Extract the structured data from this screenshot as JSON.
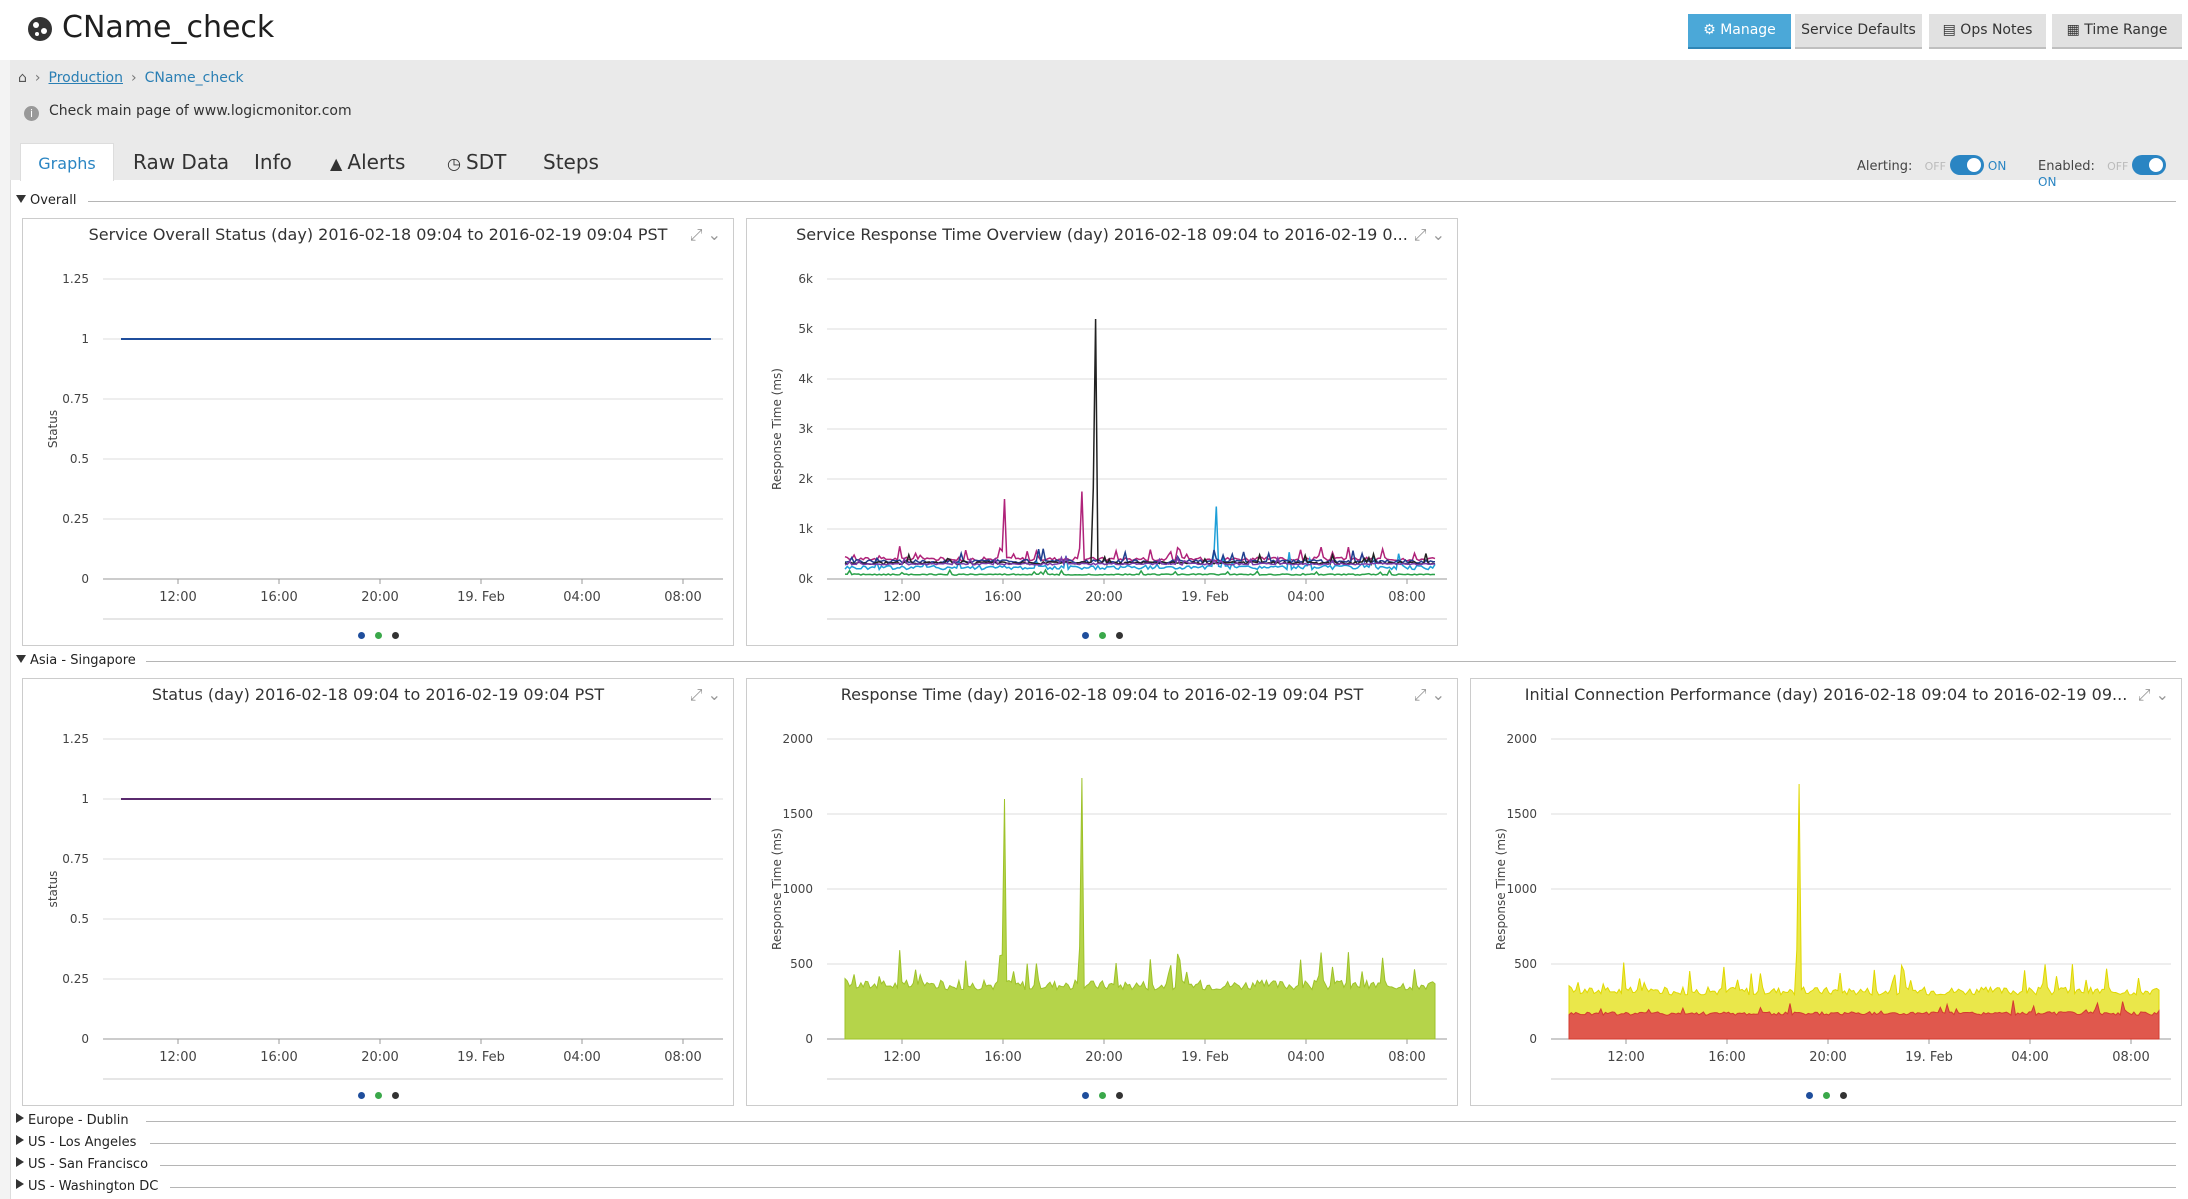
{
  "header": {
    "title": "CName_check",
    "buttons": {
      "manage": "Manage",
      "service_defaults": "Service Defaults",
      "ops_notes": "Ops Notes",
      "time_range": "Time Range"
    }
  },
  "breadcrumb": {
    "parent": "Production",
    "current": "CName_check"
  },
  "description": "Check main page of www.logicmonitor.com",
  "tabs": {
    "graphs": "Graphs",
    "raw_data": "Raw Data",
    "info": "Info",
    "alerts": "Alerts",
    "sdt": "SDT",
    "steps": "Steps"
  },
  "toggles": {
    "alerting_label": "Alerting:",
    "enabled_label": "Enabled:",
    "off": "OFF",
    "on": "ON"
  },
  "sections": {
    "overall": "Overall",
    "asia": "Asia - Singapore",
    "collapsed": [
      "Europe - Dublin",
      "US - Los Angeles",
      "US - San Francisco",
      "US - Washington DC"
    ]
  },
  "colors": {
    "accent": "#2a85c3",
    "manage_button": "#4ba8d8",
    "legend": [
      "#1f4e9c",
      "#3aa84a",
      "#333333"
    ]
  },
  "panel_titles": {
    "overall_status": "Service Overall Status (day) 2016-02-18 09:04 to 2016-02-19 09:04 PST",
    "overall_response": "Service Response Time Overview (day) 2016-02-18 09:04 to 2016-02-19 0...",
    "sg_status": "Status (day) 2016-02-18 09:04 to 2016-02-19 09:04 PST",
    "sg_response": "Response Time (day) 2016-02-18 09:04 to 2016-02-19 09:04 PST",
    "sg_connection": "Initial Connection Performance (day) 2016-02-18 09:04 to 2016-02-19 09..."
  },
  "chart_data": [
    {
      "id": "overall_status",
      "type": "line",
      "ylabel": "Status",
      "yticks": [
        "0",
        "0.25",
        "0.5",
        "0.75",
        "1",
        "1.25"
      ],
      "xticks": [
        "12:00",
        "16:00",
        "20:00",
        "19. Feb",
        "04:00",
        "08:00"
      ],
      "ylim": [
        0,
        1.25
      ],
      "series": [
        {
          "color": "#1f4e9c",
          "constant": 1
        }
      ]
    },
    {
      "id": "overall_response",
      "type": "line",
      "ylabel": "Response Time (ms)",
      "yticks": [
        "0k",
        "1k",
        "2k",
        "3k",
        "4k",
        "5k",
        "6k"
      ],
      "xticks": [
        "12:00",
        "16:00",
        "20:00",
        "19. Feb",
        "04:00",
        "08:00"
      ],
      "ylim": [
        0,
        6000
      ],
      "series": [
        {
          "color": "#b0237a",
          "base": 400,
          "noise": 120,
          "spikes": [
            [
              0.27,
              1600
            ],
            [
              0.4,
              1750
            ]
          ]
        },
        {
          "color": "#1e9fd8",
          "base": 230,
          "noise": 140,
          "spikes": [
            [
              0.63,
              1450
            ]
          ]
        },
        {
          "color": "#1f3f8f",
          "base": 350,
          "noise": 110,
          "spikes": []
        },
        {
          "color": "#222222",
          "base": 320,
          "noise": 90,
          "spikes": [
            [
              0.425,
              5200
            ]
          ]
        },
        {
          "color": "#2aa14a",
          "base": 90,
          "noise": 40,
          "spikes": []
        },
        {
          "color": "#7a3aa8",
          "base": 300,
          "noise": 60,
          "spikes": []
        }
      ]
    },
    {
      "id": "sg_status",
      "type": "line",
      "ylabel": "status",
      "yticks": [
        "0",
        "0.25",
        "0.5",
        "0.75",
        "1",
        "1.25"
      ],
      "xticks": [
        "12:00",
        "16:00",
        "20:00",
        "19. Feb",
        "04:00",
        "08:00"
      ],
      "ylim": [
        0,
        1.25
      ],
      "series": [
        {
          "color": "#5a2a6e",
          "constant": 1
        }
      ]
    },
    {
      "id": "sg_response",
      "type": "area",
      "ylabel": "Response Time (ms)",
      "yticks": [
        "0",
        "500",
        "1000",
        "1500",
        "2000"
      ],
      "xticks": [
        "12:00",
        "16:00",
        "20:00",
        "19. Feb",
        "04:00",
        "08:00"
      ],
      "ylim": [
        0,
        2000
      ],
      "series": [
        {
          "color": "#9ec22a",
          "fill": "#b5d44a",
          "base": 360,
          "noise": 110,
          "spikes": [
            [
              0.27,
              1600
            ],
            [
              0.4,
              1740
            ]
          ]
        }
      ]
    },
    {
      "id": "sg_connection",
      "type": "area",
      "ylabel": "Response Time (ms)",
      "yticks": [
        "0",
        "500",
        "1000",
        "1500",
        "2000"
      ],
      "xticks": [
        "12:00",
        "16:00",
        "20:00",
        "19. Feb",
        "04:00",
        "08:00"
      ],
      "ylim": [
        0,
        2000
      ],
      "series": [
        {
          "color": "#e0d800",
          "fill": "#eae74a",
          "base": 320,
          "noise": 90,
          "spikes": [
            [
              0.39,
              1700
            ]
          ]
        },
        {
          "color": "#d33b2f",
          "fill": "#e0584d",
          "base": 170,
          "noise": 40,
          "spikes": []
        }
      ]
    }
  ]
}
